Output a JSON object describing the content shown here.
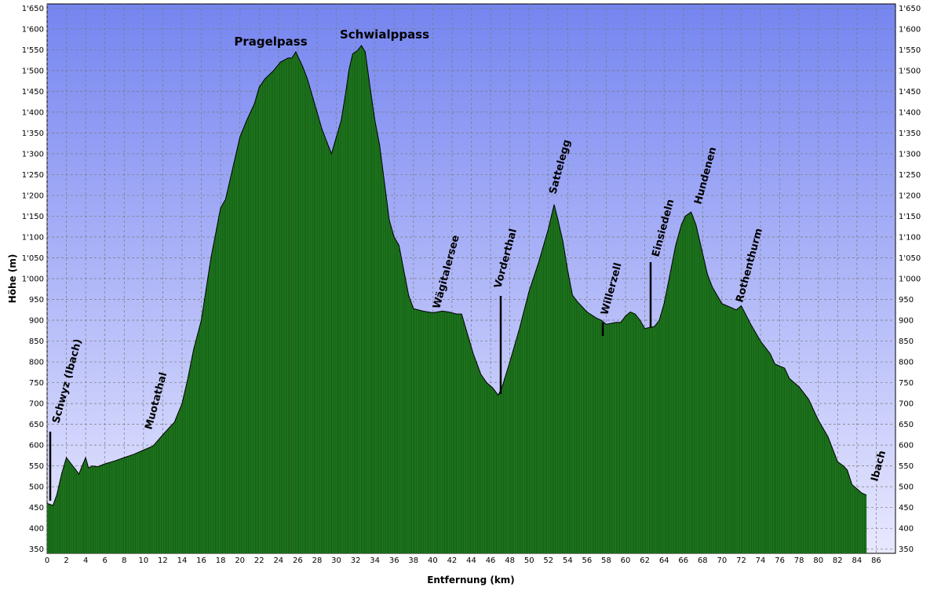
{
  "chart_data": {
    "type": "area",
    "xlabel": "Entfernung (km)",
    "ylabel": "Höhe (m)",
    "xlim": [
      0,
      88
    ],
    "ylim": [
      340,
      1660
    ],
    "x_ticks": [
      "0",
      "2",
      "4",
      "6",
      "8",
      "10",
      "12",
      "14",
      "16",
      "18",
      "20",
      "22",
      "24",
      "26",
      "28",
      "30",
      "32",
      "34",
      "36",
      "38",
      "40",
      "42",
      "44",
      "46",
      "48",
      "50",
      "52",
      "54",
      "56",
      "58",
      "60",
      "62",
      "64",
      "66",
      "68",
      "70",
      "72",
      "74",
      "76",
      "78",
      "80",
      "82",
      "84",
      "86"
    ],
    "y_ticks": [
      "350",
      "400",
      "450",
      "500",
      "550",
      "600",
      "650",
      "700",
      "750",
      "800",
      "850",
      "900",
      "950",
      "1'000",
      "1'050",
      "1'100",
      "1'150",
      "1'200",
      "1'250",
      "1'300",
      "1'350",
      "1'400",
      "1'450",
      "1'500",
      "1'550",
      "1'600",
      "1'650"
    ],
    "grid": true,
    "colors": {
      "background_top": "#7585f0",
      "background_bottom": "#e8e8ff",
      "fill": "#1e7a1e",
      "line": "#000000",
      "grid": "#7a7a7a"
    },
    "profile": [
      [
        0,
        460
      ],
      [
        0.6,
        455
      ],
      [
        1,
        480
      ],
      [
        1.5,
        530
      ],
      [
        2,
        570
      ],
      [
        2.5,
        555
      ],
      [
        3,
        540
      ],
      [
        3.3,
        530
      ],
      [
        3.6,
        548
      ],
      [
        4,
        570
      ],
      [
        4.3,
        545
      ],
      [
        4.7,
        550
      ],
      [
        5.2,
        548
      ],
      [
        6,
        555
      ],
      [
        7,
        562
      ],
      [
        8,
        570
      ],
      [
        9,
        578
      ],
      [
        10,
        588
      ],
      [
        11,
        598
      ],
      [
        12,
        625
      ],
      [
        12.6,
        640
      ],
      [
        13.2,
        655
      ],
      [
        14,
        700
      ],
      [
        14.6,
        760
      ],
      [
        15.2,
        830
      ],
      [
        16,
        900
      ],
      [
        17,
        1050
      ],
      [
        18,
        1170
      ],
      [
        18.5,
        1190
      ],
      [
        19,
        1240
      ],
      [
        20,
        1340
      ],
      [
        20.7,
        1380
      ],
      [
        21.5,
        1420
      ],
      [
        22,
        1460
      ],
      [
        22.6,
        1480
      ],
      [
        23.5,
        1500
      ],
      [
        24.2,
        1520
      ],
      [
        25,
        1530
      ],
      [
        25.4,
        1530
      ],
      [
        25.8,
        1545
      ],
      [
        26.5,
        1510
      ],
      [
        27,
        1480
      ],
      [
        27.5,
        1440
      ],
      [
        28,
        1400
      ],
      [
        28.5,
        1360
      ],
      [
        29,
        1330
      ],
      [
        29.5,
        1300
      ],
      [
        30,
        1340
      ],
      [
        30.5,
        1380
      ],
      [
        31,
        1450
      ],
      [
        31.3,
        1500
      ],
      [
        31.7,
        1540
      ],
      [
        32.2,
        1548
      ],
      [
        32.6,
        1560
      ],
      [
        33,
        1545
      ],
      [
        33.5,
        1460
      ],
      [
        34,
        1380
      ],
      [
        34.5,
        1320
      ],
      [
        35,
        1230
      ],
      [
        35.5,
        1140
      ],
      [
        36,
        1100
      ],
      [
        36.5,
        1080
      ],
      [
        37,
        1020
      ],
      [
        37.5,
        960
      ],
      [
        38,
        928
      ],
      [
        39,
        922
      ],
      [
        40,
        918
      ],
      [
        41,
        922
      ],
      [
        41.6,
        920
      ],
      [
        42.5,
        915
      ],
      [
        43,
        915
      ],
      [
        43.5,
        875
      ],
      [
        44.2,
        820
      ],
      [
        45,
        770
      ],
      [
        45.6,
        750
      ],
      [
        46.2,
        738
      ],
      [
        46.8,
        720
      ],
      [
        47.2,
        740
      ],
      [
        48,
        800
      ],
      [
        49,
        880
      ],
      [
        50,
        970
      ],
      [
        51,
        1040
      ],
      [
        51.5,
        1080
      ],
      [
        52,
        1120
      ],
      [
        52.3,
        1150
      ],
      [
        52.6,
        1178
      ],
      [
        53,
        1140
      ],
      [
        53.5,
        1090
      ],
      [
        54,
        1020
      ],
      [
        54.5,
        960
      ],
      [
        55,
        945
      ],
      [
        56,
        920
      ],
      [
        57,
        905
      ],
      [
        57.5,
        900
      ],
      [
        58,
        890
      ],
      [
        59,
        895
      ],
      [
        59.5,
        895
      ],
      [
        60,
        910
      ],
      [
        60.5,
        920
      ],
      [
        61,
        915
      ],
      [
        61.5,
        900
      ],
      [
        62,
        880
      ],
      [
        63,
        885
      ],
      [
        63.5,
        900
      ],
      [
        64,
        940
      ],
      [
        64.6,
        1010
      ],
      [
        65.2,
        1080
      ],
      [
        65.8,
        1130
      ],
      [
        66.2,
        1150
      ],
      [
        66.8,
        1160
      ],
      [
        67.3,
        1130
      ],
      [
        67.8,
        1080
      ],
      [
        68.5,
        1010
      ],
      [
        69,
        980
      ],
      [
        69.5,
        960
      ],
      [
        70,
        940
      ],
      [
        70.5,
        935
      ],
      [
        71,
        930
      ],
      [
        71.5,
        925
      ],
      [
        72,
        935
      ],
      [
        73,
        890
      ],
      [
        74,
        850
      ],
      [
        75,
        820
      ],
      [
        75.5,
        795
      ],
      [
        76,
        790
      ],
      [
        76.5,
        785
      ],
      [
        77,
        760
      ],
      [
        78,
        740
      ],
      [
        79,
        710
      ],
      [
        80,
        660
      ],
      [
        81,
        620
      ],
      [
        82,
        560
      ],
      [
        82.6,
        550
      ],
      [
        83,
        540
      ],
      [
        83.5,
        505
      ],
      [
        84,
        495
      ],
      [
        84.5,
        485
      ],
      [
        85,
        480
      ]
    ],
    "labels": [
      {
        "text": "Pragelpass",
        "style": "peak"
      },
      {
        "text": "Schwialppass",
        "style": "peak"
      },
      {
        "text": "Schwyz (Ibach)",
        "style": "place"
      },
      {
        "text": "Muotathal",
        "style": "place"
      },
      {
        "text": "Wägitalersee",
        "style": "place"
      },
      {
        "text": "Vorderthal",
        "style": "place"
      },
      {
        "text": "Sattelegg",
        "style": "place"
      },
      {
        "text": "Willerzell",
        "style": "place"
      },
      {
        "text": "Einsiedeln",
        "style": "place"
      },
      {
        "text": "Hundenen",
        "style": "place"
      },
      {
        "text": "Rothenthurm",
        "style": "place"
      },
      {
        "text": "Ibach",
        "style": "place"
      }
    ]
  }
}
